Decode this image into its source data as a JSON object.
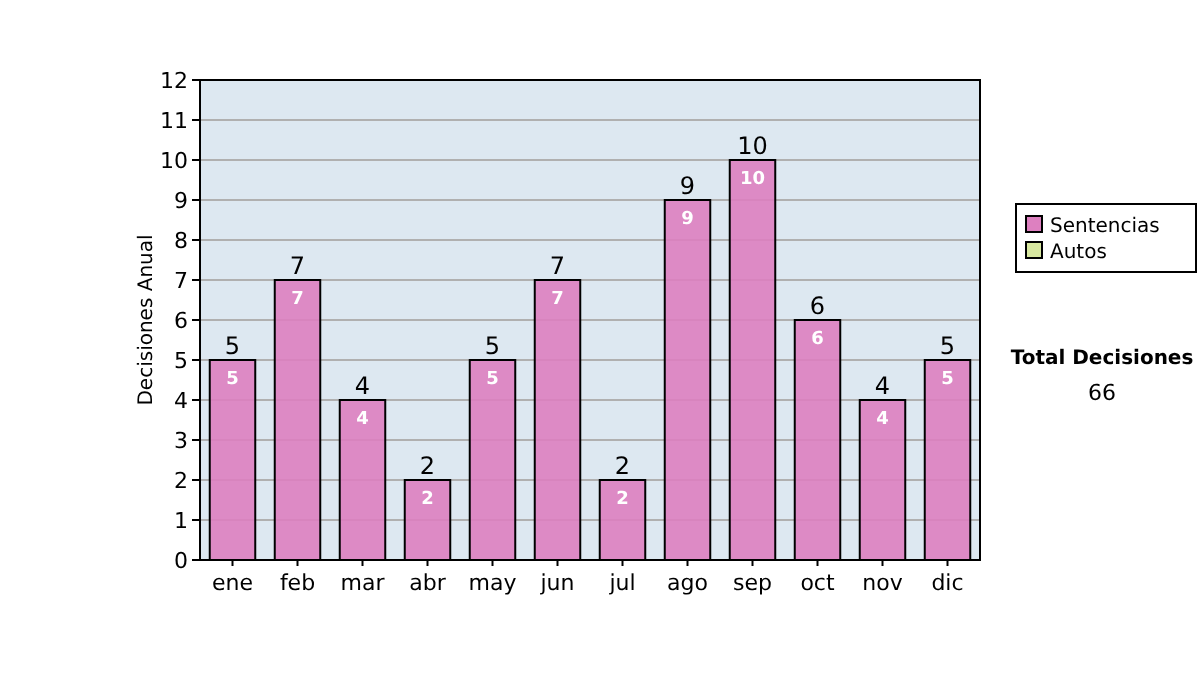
{
  "chart_data": {
    "type": "bar",
    "ylabel": "Decisiones Anual",
    "categories": [
      "ene",
      "feb",
      "mar",
      "abr",
      "may",
      "jun",
      "jul",
      "ago",
      "sep",
      "oct",
      "nov",
      "dic"
    ],
    "series": [
      {
        "name": "Sentencias",
        "color": "#dd80c0",
        "values": [
          5,
          7,
          4,
          2,
          5,
          7,
          2,
          9,
          10,
          6,
          4,
          5
        ],
        "value_labels": [
          "5",
          "7",
          "4",
          "2",
          "5",
          "7",
          "2",
          "9",
          "10",
          "6",
          "4",
          "5"
        ]
      },
      {
        "name": "Autos",
        "color": "#d8e8a0",
        "values": [
          0,
          0,
          0,
          0,
          0,
          0,
          0,
          0,
          0,
          0,
          0,
          0
        ]
      }
    ],
    "stacked": true,
    "totals": [
      "5",
      "7",
      "4",
      "2",
      "5",
      "7",
      "2",
      "9",
      "10",
      "6",
      "4",
      "5"
    ],
    "ylim": [
      0,
      12
    ],
    "yticks": [
      0,
      1,
      2,
      3,
      4,
      5,
      6,
      7,
      8,
      9,
      10,
      11,
      12
    ],
    "grid": "y",
    "legend": "right",
    "annotations": [
      "Total Decisiones",
      "66"
    ]
  }
}
